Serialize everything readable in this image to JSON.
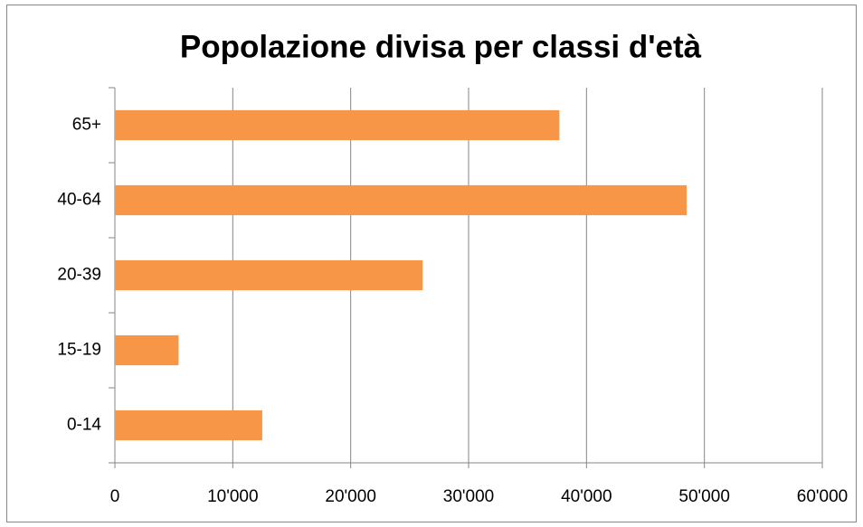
{
  "chart_data": {
    "type": "barh",
    "title": "Popolazione divisa per classi d'età",
    "categories": [
      "0-14",
      "15-19",
      "20-39",
      "40-64",
      "65+"
    ],
    "values": [
      12500,
      5400,
      26100,
      48500,
      37700
    ],
    "color": "#f79646",
    "xlim": [
      0,
      60000
    ],
    "xticks": [
      0,
      {
        "value": 10000,
        "label": "10'000"
      },
      {
        "value": 20000,
        "label": "20'000"
      },
      {
        "value": 30000,
        "label": "30'000"
      },
      {
        "value": 40000,
        "label": "40'000"
      },
      {
        "value": 50000,
        "label": "50'000"
      },
      {
        "value": 60000,
        "label": "60'000"
      }
    ],
    "grid": true
  }
}
